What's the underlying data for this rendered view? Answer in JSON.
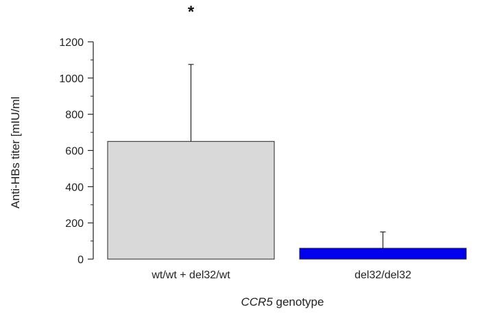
{
  "chart_data": {
    "type": "bar",
    "categories": [
      "wt/wt + del32/wt",
      "del32/del32"
    ],
    "values": [
      650,
      60
    ],
    "error_upper": [
      1075,
      150
    ],
    "colors": [
      "#d9d9d9",
      "#0000ee"
    ],
    "ylabel": "Anti-HBs titer [mIU/ml",
    "xlabel_italic": "CCR5",
    "xlabel_rest": " genotype",
    "ylim": [
      0,
      1200
    ],
    "yticks": [
      0,
      200,
      400,
      600,
      800,
      1000,
      1200
    ],
    "minor_tick_step": 100,
    "annotation": "*",
    "grid": false
  }
}
